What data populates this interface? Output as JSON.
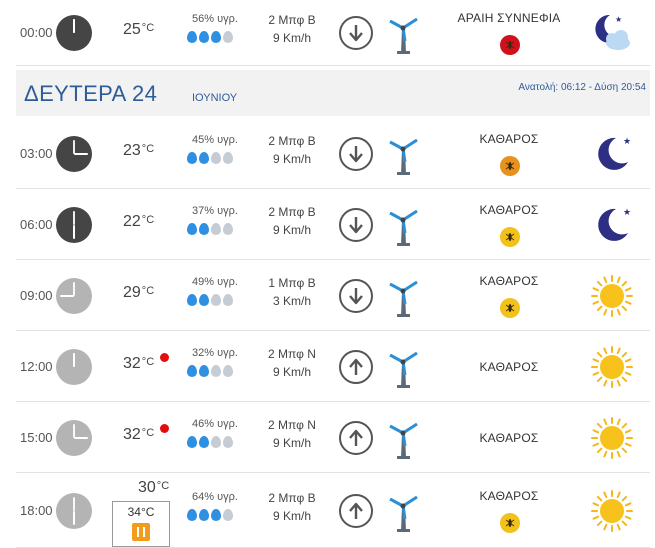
{
  "day_header": {
    "day": "ΔΕΥΤΕΡΑ 24",
    "month": "ΙΟΥΝΙΟΥ",
    "sun": "Ανατολή: 06:12 - Δύση 20:54"
  },
  "colors": {
    "accent_blue": "#2d5d98",
    "clock_dark": "#454545",
    "clock_light": "#b4b4b4",
    "drop_full": "#2f8fe0",
    "drop_empty": "#c5ccd4",
    "hot_dot": "#e30d0d",
    "moon": "#2c2f83",
    "sun": "#f7c21b"
  },
  "rows": [
    {
      "time": "00:00",
      "hour": 0,
      "clock": "dark",
      "temp": "25",
      "hot": false,
      "humidity": "56% υγρ.",
      "drops_full": 3,
      "wind_force": "2 Μπφ Β",
      "wind_speed": "9 Km/h",
      "wind_dir": "down-arrow-icon",
      "sky": "ΑΡΑΙΗ ΣΥΝΝΕΦΙΑ",
      "bug": "red",
      "icon": "moon-cloud-icon",
      "realfeel": null
    },
    {
      "time": "03:00",
      "hour": 3,
      "clock": "dark",
      "temp": "23",
      "hot": false,
      "humidity": "45% υγρ.",
      "drops_full": 2,
      "wind_force": "2 Μπφ Β",
      "wind_speed": "9 Km/h",
      "wind_dir": "down-arrow-icon",
      "sky": "ΚΑΘΑΡΟΣ",
      "bug": "orange",
      "icon": "moon-icon",
      "realfeel": null
    },
    {
      "time": "06:00",
      "hour": 6,
      "clock": "dark",
      "temp": "22",
      "hot": false,
      "humidity": "37% υγρ.",
      "drops_full": 2,
      "wind_force": "2 Μπφ Β",
      "wind_speed": "9 Km/h",
      "wind_dir": "down-arrow-icon",
      "sky": "ΚΑΘΑΡΟΣ",
      "bug": "yellow",
      "icon": "moon-icon",
      "realfeel": null
    },
    {
      "time": "09:00",
      "hour": 9,
      "clock": "light",
      "temp": "29",
      "hot": false,
      "humidity": "49% υγρ.",
      "drops_full": 2,
      "wind_force": "1 Μπφ Β",
      "wind_speed": "3 Km/h",
      "wind_dir": "down-arrow-icon",
      "sky": "ΚΑΘΑΡΟΣ",
      "bug": "yellow",
      "icon": "sun-icon",
      "realfeel": null
    },
    {
      "time": "12:00",
      "hour": 12,
      "clock": "light",
      "temp": "32",
      "hot": true,
      "humidity": "32% υγρ.",
      "drops_full": 2,
      "wind_force": "2 Μπφ Ν",
      "wind_speed": "9 Km/h",
      "wind_dir": "up-arrow-icon",
      "sky": "ΚΑΘΑΡΟΣ",
      "bug": null,
      "icon": "sun-icon",
      "realfeel": null
    },
    {
      "time": "15:00",
      "hour": 15,
      "clock": "light",
      "temp": "32",
      "hot": true,
      "humidity": "46% υγρ.",
      "drops_full": 2,
      "wind_force": "2 Μπφ Ν",
      "wind_speed": "9 Km/h",
      "wind_dir": "up-arrow-icon",
      "sky": "ΚΑΘΑΡΟΣ",
      "bug": null,
      "icon": "sun-icon",
      "realfeel": null
    },
    {
      "time": "18:00",
      "hour": 18,
      "clock": "light",
      "temp": "30",
      "hot": false,
      "humidity": "64% υγρ.",
      "drops_full": 3,
      "wind_force": "2 Μπφ Β",
      "wind_speed": "9 Km/h",
      "wind_dir": "up-arrow-icon",
      "sky": "ΚΑΘΑΡΟΣ",
      "bug": "yellow",
      "icon": "sun-icon",
      "realfeel": "34°C"
    }
  ],
  "units": {
    "temp": "°C"
  }
}
